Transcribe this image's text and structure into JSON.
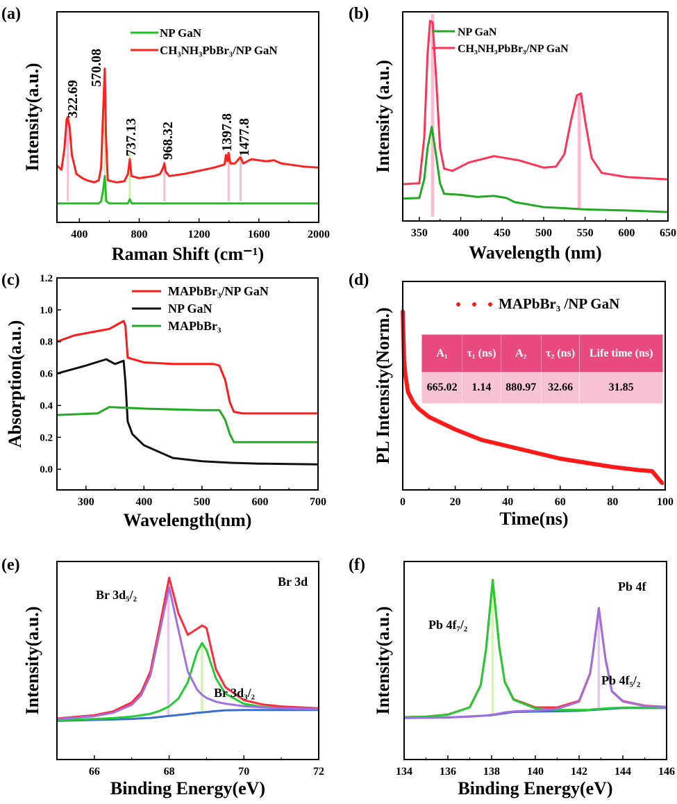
{
  "chart_data": [
    {
      "panel_label": "(a)",
      "type": "line",
      "xlabel": "Raman Shift (cm⁻¹)",
      "ylabel": "Intensity(a.u.)",
      "xlim": [
        250,
        2000
      ],
      "ylim": [
        0,
        10
      ],
      "xticks": [
        400,
        800,
        1200,
        1600,
        2000
      ],
      "yticks": [],
      "legend": {
        "placement": "top-center"
      },
      "series": [
        {
          "name": "NP GaN",
          "color": "#22c022",
          "x": [
            250,
            530,
            545,
            560,
            570,
            580,
            600,
            725,
            737,
            750,
            2000
          ],
          "y": [
            0.9,
            0.9,
            1.0,
            1.6,
            2.2,
            1.0,
            0.9,
            0.9,
            1.1,
            0.9,
            0.9
          ]
        },
        {
          "name": "CH₃NH₃PbBr₃/NP GaN",
          "color": "#ff2020",
          "x": [
            250,
            280,
            300,
            315,
            322,
            335,
            350,
            380,
            420,
            450,
            500,
            530,
            545,
            560,
            570,
            578,
            590,
            650,
            700,
            725,
            737,
            748,
            800,
            900,
            940,
            960,
            968,
            978,
            1000,
            1100,
            1200,
            1300,
            1370,
            1380,
            1390,
            1397,
            1410,
            1440,
            1477,
            1495,
            1550,
            1600,
            1650,
            1700,
            1750,
            1800,
            1900,
            2000
          ],
          "y": [
            2.7,
            2.5,
            3.5,
            4.9,
            5.0,
            4.5,
            3.2,
            2.3,
            2.1,
            2.0,
            1.9,
            2.0,
            2.6,
            5.5,
            7.3,
            4.0,
            2.0,
            1.9,
            1.95,
            2.3,
            3.0,
            2.2,
            2.1,
            2.2,
            2.3,
            2.6,
            2.8,
            2.4,
            2.2,
            2.3,
            2.45,
            2.6,
            2.75,
            3.2,
            2.9,
            3.3,
            2.8,
            2.8,
            3.1,
            2.8,
            3.0,
            2.95,
            2.9,
            2.95,
            2.8,
            2.75,
            2.65,
            2.6
          ]
        }
      ],
      "bands": [
        {
          "x": 322.69,
          "color": "#f7a8c4",
          "y_range": [
            1.0,
            5.0
          ]
        },
        {
          "x": 570.08,
          "color": "#b9ee8c",
          "y_range": [
            1.0,
            7.3
          ]
        },
        {
          "x": 737.13,
          "color": "#b9ee8c",
          "y_range": [
            1.0,
            3.3
          ]
        },
        {
          "x": 968.32,
          "color": "#f7a8c4",
          "y_range": [
            1.0,
            2.9
          ]
        },
        {
          "x": 1397.8,
          "color": "#f7a8c4",
          "y_range": [
            1.0,
            3.3
          ]
        },
        {
          "x": 1477.8,
          "color": "#f7a8c4",
          "y_range": [
            1.0,
            3.1
          ]
        }
      ],
      "annotations": [
        "322.69",
        "570.08",
        "737.13",
        "968.32",
        "1397.8",
        "1477.8"
      ]
    },
    {
      "panel_label": "(b)",
      "type": "line",
      "xlabel": "Wavelength (nm)",
      "ylabel": "Intensity (a.u.)",
      "xlim": [
        330,
        650
      ],
      "ylim": [
        0,
        10
      ],
      "xticks": [
        350,
        400,
        450,
        500,
        550,
        600,
        650
      ],
      "yticks": [],
      "legend": {
        "placement": "top-center"
      },
      "series": [
        {
          "name": "NP GaN",
          "color": "#22a822",
          "x": [
            330,
            350,
            356,
            360,
            365,
            370,
            375,
            380,
            400,
            420,
            440,
            455,
            465,
            480,
            500,
            520,
            550,
            600,
            650
          ],
          "y": [
            1.07,
            1.1,
            2.0,
            3.5,
            4.5,
            3.2,
            1.8,
            1.3,
            1.25,
            1.15,
            1.2,
            1.1,
            0.9,
            0.8,
            0.66,
            0.62,
            0.55,
            0.5,
            0.43
          ]
        },
        {
          "name": "CH₃NH₃PbBr₃/NP GaN",
          "color": "#ff3355",
          "x": [
            330,
            350,
            356,
            360,
            363,
            366,
            370,
            375,
            380,
            390,
            410,
            440,
            470,
            500,
            515,
            525,
            533,
            540,
            545,
            550,
            558,
            570,
            600,
            650
          ],
          "y": [
            1.76,
            1.8,
            4.0,
            8.0,
            9.57,
            9.5,
            7.0,
            3.5,
            2.5,
            2.4,
            2.8,
            3.1,
            2.9,
            2.55,
            2.6,
            3.2,
            4.8,
            6.0,
            6.1,
            4.8,
            3.0,
            2.3,
            2.1,
            1.99
          ]
        }
      ],
      "bands": [
        {
          "x": 366,
          "color": "#f7a8c4",
          "y_range": [
            0.2,
            9.9
          ]
        },
        {
          "x": 543,
          "color": "#f7a8c4",
          "y_range": [
            0.6,
            6.0
          ]
        }
      ],
      "annotations": []
    },
    {
      "panel_label": "(c)",
      "type": "line",
      "xlabel": "Wavelength(nm)",
      "ylabel": "Absorption(a.u.)",
      "xlim": [
        250,
        700
      ],
      "ylim": [
        -0.13,
        1.2
      ],
      "xticks": [
        300,
        400,
        500,
        600,
        700
      ],
      "yticks": [
        0.0,
        0.2,
        0.4,
        0.6,
        0.8,
        1.0,
        1.2
      ],
      "ytick_labels": [
        "0.0",
        "0.2",
        "0.4",
        "0.6",
        "0.8",
        "1.0",
        "1.2"
      ],
      "legend": {
        "placement": "top-right"
      },
      "series": [
        {
          "name": "MAPbBr₃/NP GaN",
          "color": "#ff1a1a",
          "x": [
            250,
            280,
            310,
            340,
            355,
            365,
            368,
            372,
            400,
            450,
            500,
            520,
            530,
            540,
            548,
            555,
            570,
            700
          ],
          "y": [
            0.8,
            0.84,
            0.86,
            0.88,
            0.91,
            0.93,
            0.9,
            0.7,
            0.67,
            0.66,
            0.66,
            0.66,
            0.65,
            0.56,
            0.42,
            0.36,
            0.35,
            0.35
          ]
        },
        {
          "name": "NP GaN",
          "color": "#111111",
          "x": [
            250,
            300,
            335,
            350,
            365,
            368,
            372,
            380,
            400,
            450,
            500,
            550,
            600,
            700
          ],
          "y": [
            0.6,
            0.65,
            0.69,
            0.66,
            0.68,
            0.55,
            0.3,
            0.22,
            0.15,
            0.07,
            0.05,
            0.04,
            0.035,
            0.03
          ]
        },
        {
          "name": "MAPbBr₃",
          "color": "#22aa22",
          "x": [
            250,
            320,
            340,
            400,
            500,
            530,
            540,
            548,
            555,
            570,
            700
          ],
          "y": [
            0.34,
            0.35,
            0.39,
            0.38,
            0.37,
            0.37,
            0.31,
            0.22,
            0.17,
            0.17,
            0.17
          ]
        }
      ],
      "bands": [],
      "annotations": []
    },
    {
      "panel_label": "(d)",
      "type": "scatter",
      "xlabel": "Time(ns)",
      "ylabel": "PL Intensity(Norm.)",
      "xlim": [
        0,
        100
      ],
      "ylim": [
        0,
        1
      ],
      "xticks": [
        0,
        20,
        40,
        60,
        80,
        100
      ],
      "yticks": [],
      "legend": {
        "placement": "top-right"
      },
      "series": [
        {
          "name": "MAPbBr₃ /NP GaN",
          "color": "#ff1a1a",
          "x": [
            0,
            0.5,
            1,
            2,
            4,
            6,
            10,
            15,
            20,
            30,
            40,
            50,
            60,
            70,
            80,
            90,
            95,
            99
          ],
          "y": [
            0.86,
            0.62,
            0.55,
            0.47,
            0.42,
            0.39,
            0.35,
            0.32,
            0.29,
            0.24,
            0.21,
            0.18,
            0.15,
            0.13,
            0.11,
            0.095,
            0.09,
            0.03
          ]
        }
      ],
      "table": {
        "headers": [
          "A₁",
          "τ₁ (ns)",
          "A₂",
          "τ₂ (ns)",
          "Life time (ns)"
        ],
        "rows": [
          [
            "665.02",
            "1.14",
            "880.97",
            "32.66",
            "31.85"
          ]
        ]
      },
      "bands": [],
      "annotations": []
    },
    {
      "panel_label": "(e)",
      "type": "line",
      "xlabel": "Binding Energy(eV)",
      "ylabel": "Intensity(a.u.)",
      "xlim": [
        65,
        72
      ],
      "ylim": [
        0,
        10
      ],
      "xticks": [
        66,
        68,
        70,
        72
      ],
      "yticks": [],
      "series": [
        {
          "color": "#3a6fd0",
          "x": [
            65,
            66,
            66.5,
            67,
            67.25,
            67.5,
            67.75,
            68,
            68.25,
            68.5,
            68.75,
            68.88,
            69,
            69.25,
            69.5,
            70,
            70.5,
            71,
            72
          ],
          "y": [
            1.95,
            2.0,
            2.02,
            2.05,
            2.08,
            2.1,
            2.15,
            2.2,
            2.25,
            2.3,
            2.36,
            2.38,
            2.4,
            2.45,
            2.48,
            2.5,
            2.5,
            2.5,
            2.5
          ]
        },
        {
          "color": "#22cc33",
          "x": [
            65,
            66,
            66.5,
            67,
            67.25,
            67.5,
            67.75,
            68,
            68.25,
            68.5,
            68.75,
            68.88,
            69,
            69.25,
            69.5,
            70,
            70.5,
            71,
            72
          ],
          "y": [
            1.98,
            2.05,
            2.09,
            2.17,
            2.23,
            2.31,
            2.46,
            2.68,
            3.08,
            3.91,
            5.44,
            5.88,
            5.53,
            4.1,
            3.33,
            2.81,
            2.66,
            2.59,
            2.54
          ]
        },
        {
          "color": "#ff2a3a",
          "x": [
            65,
            66,
            66.5,
            67,
            67.25,
            67.5,
            67.75,
            68,
            68.25,
            68.5,
            68.75,
            68.88,
            69,
            69.25,
            69.5,
            70,
            70.5,
            71,
            72
          ],
          "y": [
            2.07,
            2.24,
            2.43,
            2.88,
            3.39,
            4.45,
            6.76,
            9.18,
            7.38,
            6.3,
            6.6,
            6.77,
            6.64,
            4.57,
            3.66,
            3.0,
            2.78,
            2.68,
            2.59
          ]
        },
        {
          "color": "#a070e0",
          "x": [
            65,
            66,
            66.5,
            67,
            67.25,
            67.5,
            67.75,
            68,
            68.25,
            68.5,
            68.75,
            68.88,
            69,
            69.25,
            69.5,
            70,
            70.5,
            71,
            72
          ],
          "y": [
            2.04,
            2.19,
            2.36,
            2.76,
            3.24,
            4.24,
            6.45,
            8.7,
            6.55,
            4.44,
            3.52,
            3.27,
            3.11,
            2.92,
            2.82,
            2.69,
            2.63,
            2.59,
            2.55
          ]
        }
      ],
      "bands": [
        {
          "x": 67.98,
          "color": "#e3b6ee",
          "y_range": [
            2.2,
            8.7
          ]
        },
        {
          "x": 68.88,
          "color": "#c6f0a0",
          "y_range": [
            2.4,
            5.9
          ]
        }
      ],
      "annotations": [
        "Br 3d",
        "Br 3d₅/₂",
        "Br 3d₃/₂"
      ]
    },
    {
      "panel_label": "(f)",
      "type": "line",
      "xlabel": "Binding Energy(eV)",
      "ylabel": "Intensity(a.u.)",
      "xlim": [
        134,
        146
      ],
      "ylim": [
        0,
        10
      ],
      "xticks": [
        134,
        136,
        138,
        140,
        142,
        144,
        146
      ],
      "yticks": [],
      "series": [
        {
          "color": "#3a6fd0",
          "x": [
            134,
            136,
            138,
            139,
            140,
            141,
            142,
            143,
            144,
            146
          ],
          "y": [
            2.1,
            2.12,
            2.24,
            2.4,
            2.42,
            2.44,
            2.46,
            2.53,
            2.6,
            2.6
          ]
        },
        {
          "color": "#ff2a3a",
          "x": [
            134,
            135,
            136,
            137,
            137.5,
            137.75,
            138.05,
            138.35,
            138.6,
            139,
            140,
            141,
            142,
            142.5,
            142.6,
            142.9,
            143.2,
            143.5,
            144,
            145,
            146
          ],
          "y": [
            2.14,
            2.17,
            2.27,
            2.64,
            3.76,
            5.62,
            9.07,
            5.72,
            3.94,
            3.05,
            2.63,
            2.63,
            2.96,
            4.35,
            5.08,
            7.65,
            5.13,
            3.45,
            2.95,
            2.72,
            2.66
          ]
        },
        {
          "color": "#22cc33",
          "x": [
            134,
            135,
            136,
            137,
            137.5,
            137.75,
            138.05,
            138.35,
            138.6,
            139,
            140,
            141,
            142,
            142.5,
            142.6,
            142.9,
            143.2,
            143.5,
            144,
            145,
            146
          ],
          "y": [
            2.14,
            2.17,
            2.26,
            2.63,
            3.74,
            5.6,
            9.05,
            5.7,
            3.91,
            3.02,
            2.58,
            2.51,
            2.5,
            2.51,
            2.53,
            2.55,
            2.58,
            2.6,
            2.62,
            2.62,
            2.61
          ]
        },
        {
          "color": "#a070e0",
          "x": [
            134,
            135,
            136,
            137,
            137.5,
            137.75,
            138.05,
            138.35,
            138.6,
            139,
            140,
            141,
            142,
            142.5,
            142.6,
            142.9,
            143.2,
            143.5,
            144,
            145,
            146
          ],
          "y": [
            2.11,
            2.11,
            2.13,
            2.16,
            2.2,
            2.22,
            2.27,
            2.32,
            2.38,
            2.43,
            2.47,
            2.56,
            2.92,
            4.32,
            5.05,
            7.62,
            5.1,
            3.43,
            2.93,
            2.7,
            2.65
          ]
        }
      ],
      "bands": [
        {
          "x": 138.05,
          "color": "#c6f0a0",
          "y_range": [
            2.2,
            9.0
          ]
        },
        {
          "x": 142.9,
          "color": "#e3b6ee",
          "y_range": [
            2.5,
            7.6
          ]
        }
      ],
      "annotations": [
        "Pb 4f",
        "Pb 4f₇/₂",
        "Pb 4f₅/₂"
      ]
    }
  ]
}
